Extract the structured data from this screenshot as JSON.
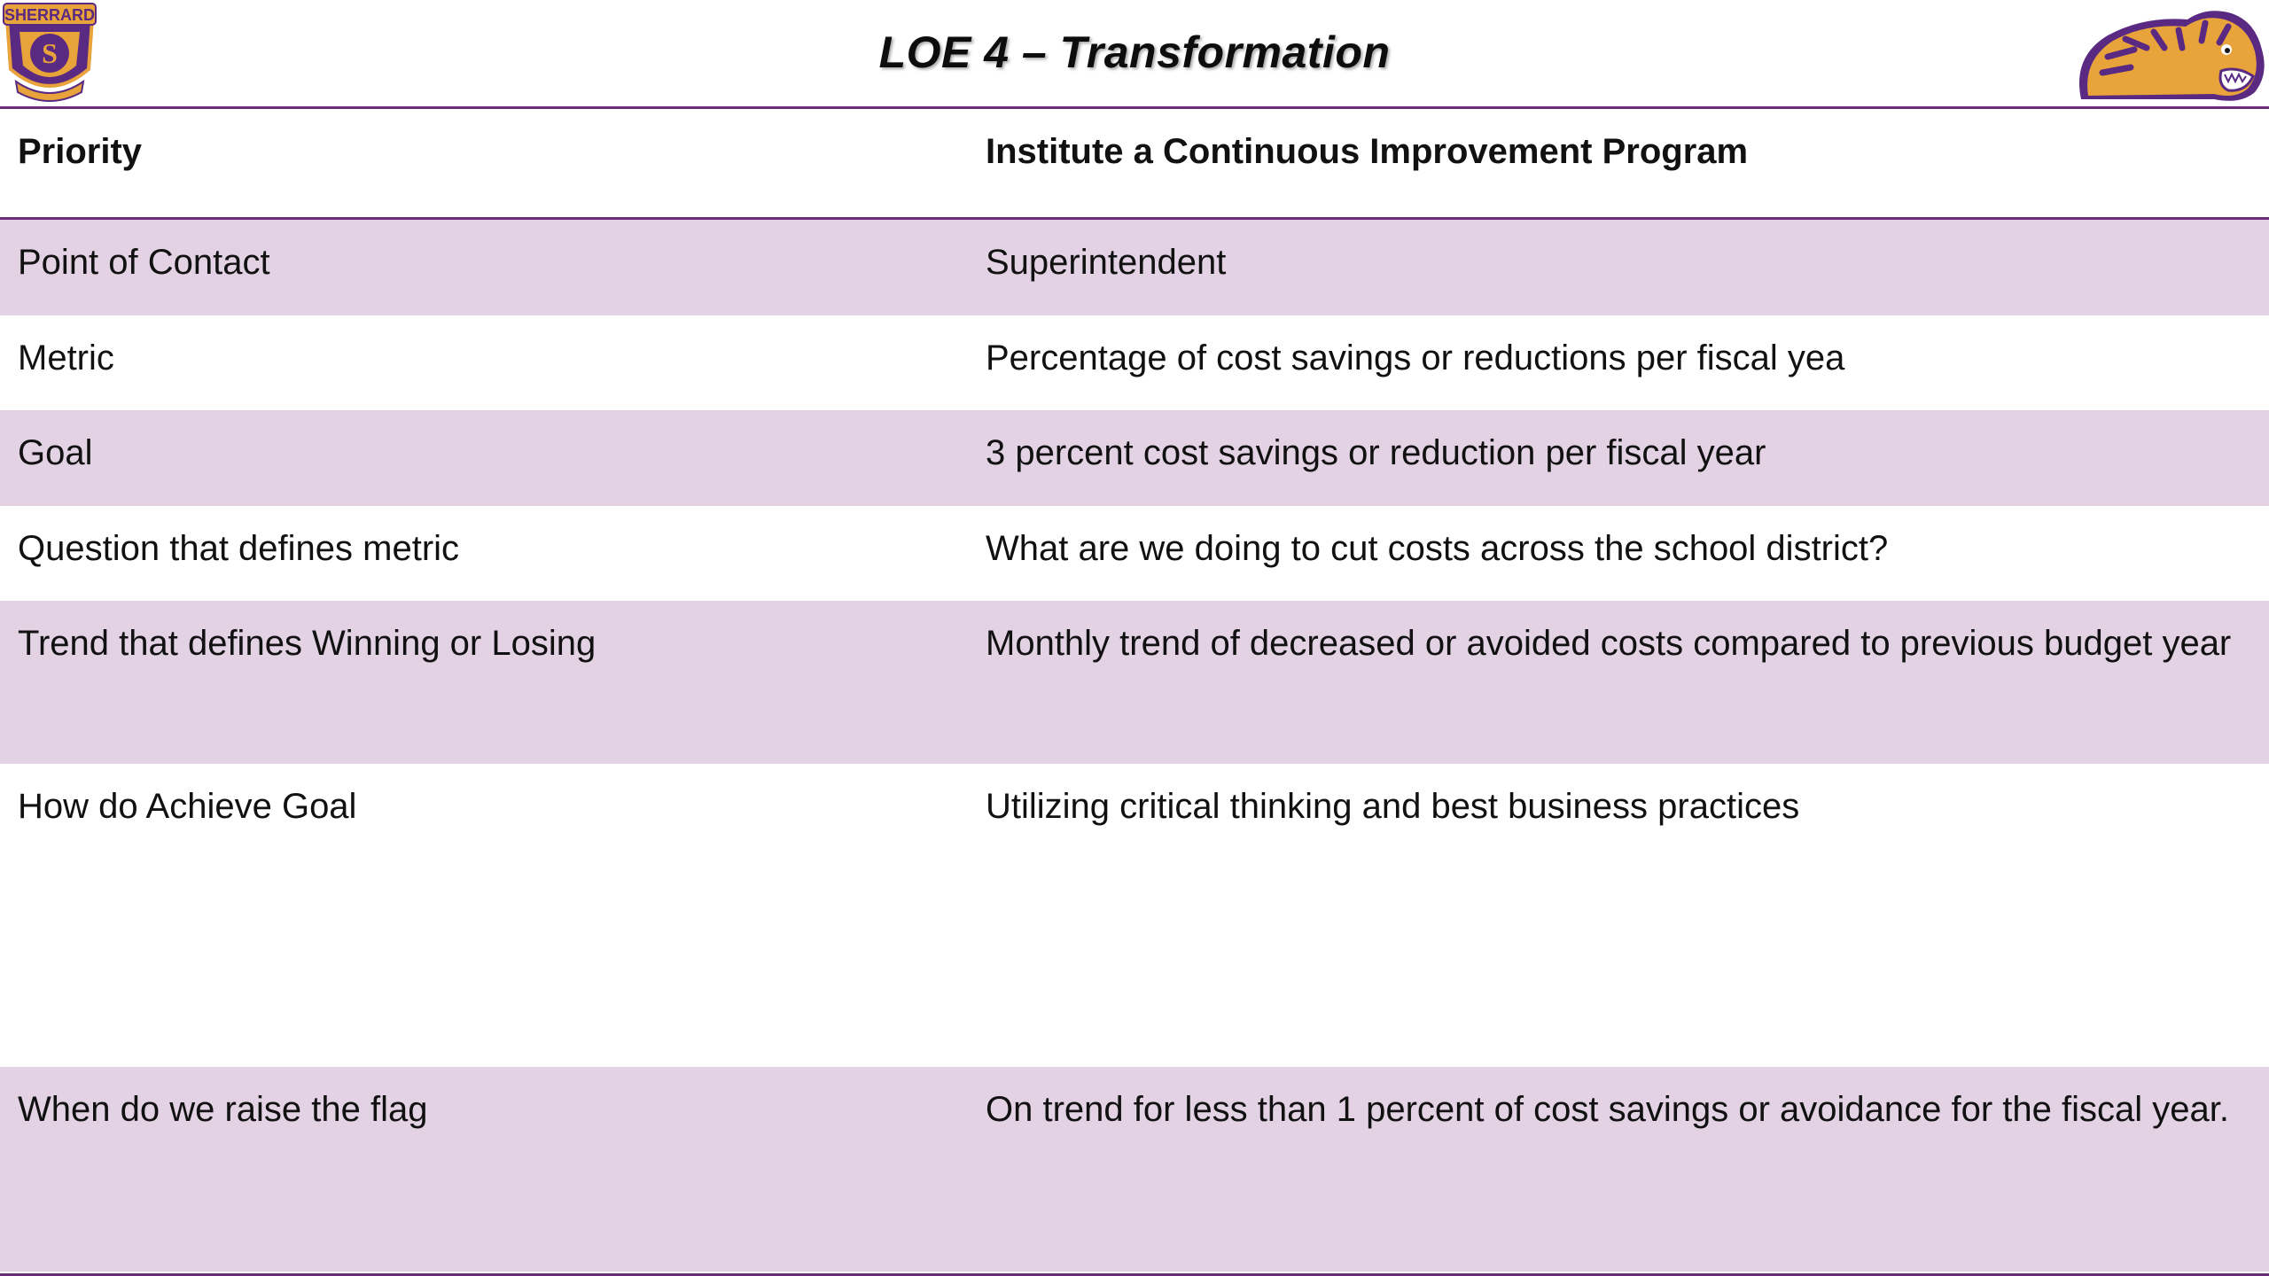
{
  "title": "LOE 4 – Transformation",
  "logos": {
    "left": "sherrard-crest",
    "left_text": "SHERRARD",
    "right": "tiger-mascot"
  },
  "table": {
    "header": {
      "label": "Priority",
      "value": "Institute a Continuous Improvement Program"
    },
    "rows": [
      {
        "label": "Point of Contact",
        "value": "Superintendent"
      },
      {
        "label": "Metric",
        "value": "Percentage of cost savings or reductions per fiscal yea"
      },
      {
        "label": "Goal",
        "value": "3 percent cost savings or reduction per fiscal year"
      },
      {
        "label": "Question that defines metric",
        "value": "What are we doing to cut costs across the school district?"
      },
      {
        "label": "Trend that defines Winning or Losing",
        "value": "Monthly trend of decreased or avoided costs compared to previous budget year"
      },
      {
        "label": "How do Achieve Goal",
        "value": "Utilizing critical thinking and best business practices"
      },
      {
        "label": "When do we raise the flag",
        "value": "On trend for less than 1 percent of cost savings or avoidance for the fiscal year."
      }
    ]
  },
  "colors": {
    "accent": "#6b2c7a",
    "row_shade": "#e2d2e3",
    "logo_gold": "#e8a33a",
    "logo_purple": "#5a2a82"
  }
}
